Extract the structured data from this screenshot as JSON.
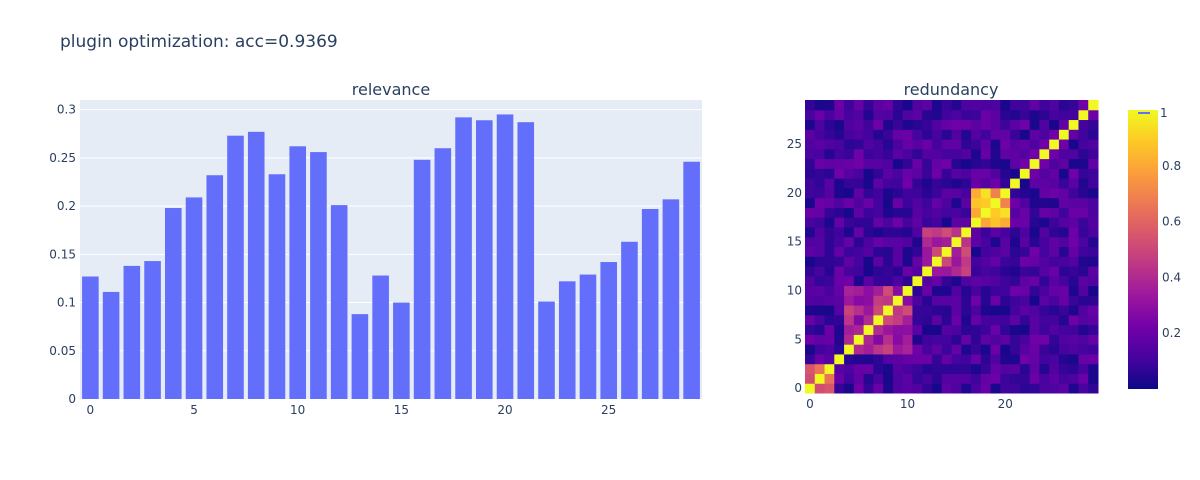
{
  "title": "plugin optimization: acc=0.9369",
  "colors": {
    "bar": "#636efa",
    "plot_bg": "#e5ecf6",
    "grid": "#ffffff",
    "text": "#2a3f5f",
    "colorscale": [
      "#0d0887",
      "#46039f",
      "#7201a8",
      "#9c179e",
      "#bd3786",
      "#d8576b",
      "#ed7953",
      "#fb9f3a",
      "#fdca26",
      "#f0f921"
    ]
  },
  "chart_data": [
    {
      "type": "bar",
      "title": "relevance",
      "x": [
        0,
        1,
        2,
        3,
        4,
        5,
        6,
        7,
        8,
        9,
        10,
        11,
        12,
        13,
        14,
        15,
        16,
        17,
        18,
        19,
        20,
        21,
        22,
        23,
        24,
        25,
        26,
        27,
        28,
        29
      ],
      "values": [
        0.127,
        0.111,
        0.138,
        0.143,
        0.198,
        0.209,
        0.232,
        0.273,
        0.277,
        0.233,
        0.262,
        0.256,
        0.201,
        0.088,
        0.128,
        0.1,
        0.248,
        0.26,
        0.292,
        0.289,
        0.295,
        0.287,
        0.101,
        0.122,
        0.129,
        0.142,
        0.163,
        0.197,
        0.207,
        0.246
      ],
      "xlim": [
        -0.5,
        29.5
      ],
      "ylim": [
        0,
        0.3
      ],
      "xticks": [
        0,
        5,
        10,
        15,
        20,
        25
      ],
      "yticks": [
        0,
        0.05,
        0.1,
        0.15,
        0.2,
        0.25,
        0.3
      ],
      "ytick_labels": [
        "0",
        "0.05",
        "0.1",
        "0.15",
        "0.2",
        "0.25",
        "0.3"
      ],
      "grid": true
    },
    {
      "type": "heatmap",
      "title": "redundancy",
      "n": 30,
      "xticks": [
        0,
        10,
        20
      ],
      "yticks": [
        0,
        5,
        10,
        15,
        20,
        25
      ],
      "clusters": [
        {
          "from": 0,
          "to": 2,
          "value": 0.55
        },
        {
          "from": 4,
          "to": 10,
          "value": 0.4
        },
        {
          "from": 12,
          "to": 16,
          "value": 0.45
        },
        {
          "from": 17,
          "to": 20,
          "value": 0.8
        }
      ],
      "colorbar": {
        "ticks": [
          0.2,
          0.4,
          0.6,
          0.8
        ],
        "tick_labels": [
          "0.2",
          "0.4",
          "0.6",
          "0.8"
        ],
        "range": [
          0,
          1
        ]
      },
      "legend_label": "1"
    }
  ]
}
